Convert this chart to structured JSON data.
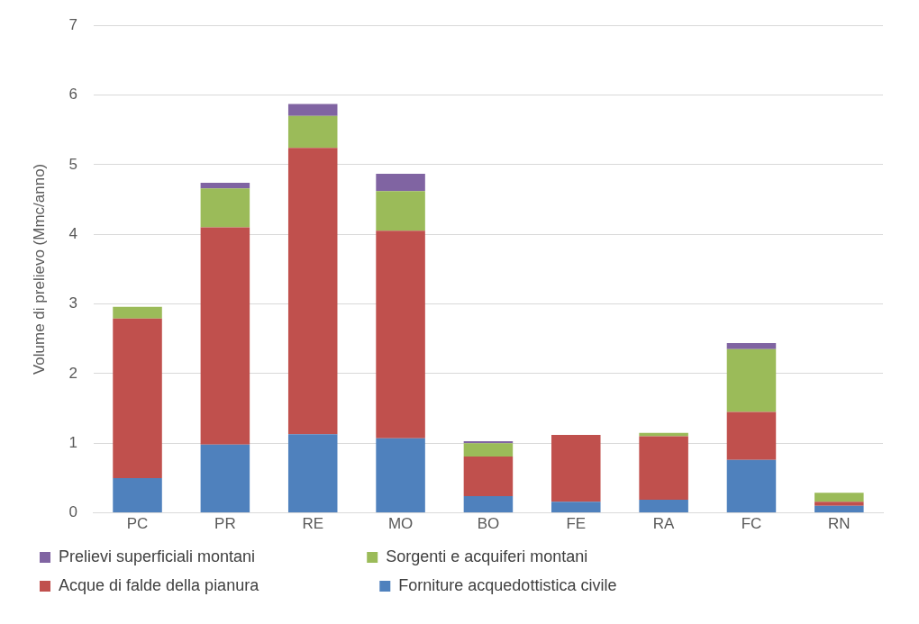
{
  "chart_data": {
    "type": "bar",
    "stacked": true,
    "ylabel": "Volume di prelievo (Mmc/anno)",
    "categories": [
      "PC",
      "PR",
      "RE",
      "MO",
      "BO",
      "FE",
      "RA",
      "FC",
      "RN"
    ],
    "series": [
      {
        "name": "Forniture acquedottistica civile",
        "color": "#4f81bd",
        "values": [
          0.5,
          0.98,
          1.13,
          1.07,
          0.24,
          0.16,
          0.19,
          0.76,
          0.1
        ]
      },
      {
        "name": "Acque di falde della pianura",
        "color": "#c0504d",
        "values": [
          2.29,
          3.12,
          4.11,
          2.98,
          0.57,
          0.96,
          0.91,
          0.69,
          0.06
        ]
      },
      {
        "name": "Sorgenti e acquiferi montani",
        "color": "#9bbb59",
        "values": [
          0.17,
          0.56,
          0.46,
          0.57,
          0.19,
          0,
          0.05,
          0.9,
          0.13
        ]
      },
      {
        "name": "Prelievi superficiali montani",
        "color": "#8064a2",
        "values": [
          0,
          0.08,
          0.17,
          0.25,
          0.03,
          0,
          0,
          0.09,
          0
        ]
      }
    ],
    "ylim": [
      0,
      7
    ],
    "yticks": [
      0,
      1,
      2,
      3,
      4,
      5,
      6,
      7
    ],
    "grid": "y",
    "legend": "bottom"
  }
}
